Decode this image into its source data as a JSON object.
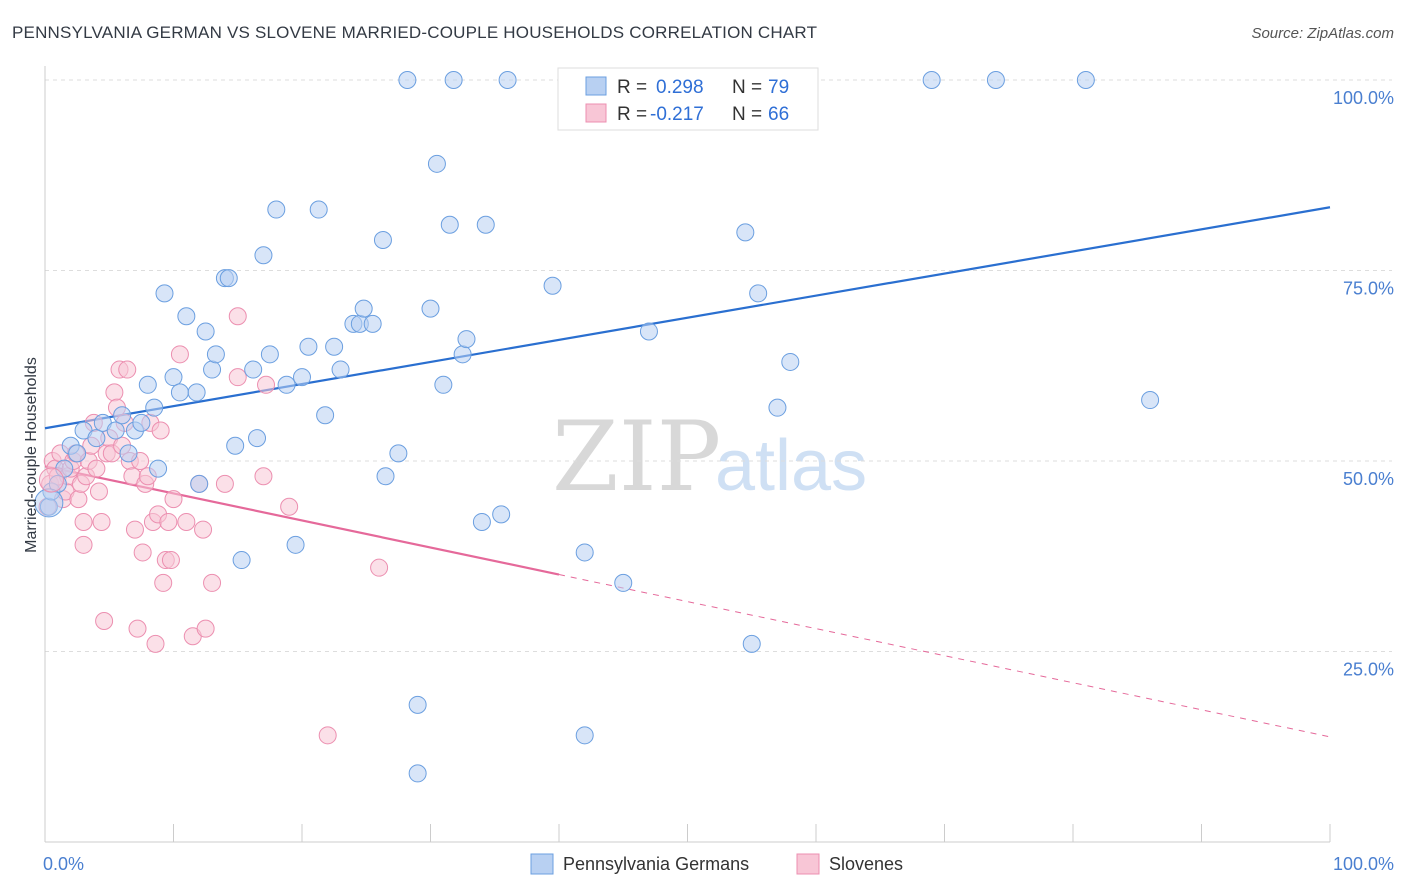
{
  "title": "PENNSYLVANIA GERMAN VS SLOVENE MARRIED-COUPLE HOUSEHOLDS CORRELATION CHART",
  "source": "Source: ZipAtlas.com",
  "watermark": {
    "zip": "ZIP",
    "atlas": "atlas"
  },
  "colors": {
    "blue_fill": "#b8d0f2",
    "blue_stroke": "#6b9fe0",
    "blue_line": "#2a6fd0",
    "pink_fill": "#f8c6d6",
    "pink_stroke": "#ec8fb0",
    "pink_line": "#e5699a",
    "grid": "#dddddd",
    "tick_text": "#4a7fd0"
  },
  "legend": {
    "rows": [
      {
        "r_label": "R =",
        "r_value": "0.298",
        "n_label": "N =",
        "n_value": "79"
      },
      {
        "r_label": "R =",
        "r_value": "-0.217",
        "n_label": "N =",
        "n_value": "66"
      }
    ]
  },
  "chart_data": {
    "type": "scatter",
    "title": "PENNSYLVANIA GERMAN VS SLOVENE MARRIED-COUPLE HOUSEHOLDS CORRELATION CHART",
    "xlabel": "",
    "ylabel": "Married-couple Households",
    "xlim": [
      0,
      100
    ],
    "ylim": [
      0,
      100
    ],
    "x_tick_labels": [
      "0.0%",
      "100.0%"
    ],
    "y_tick_labels": [
      "25.0%",
      "50.0%",
      "75.0%",
      "100.0%"
    ],
    "y_ticks": [
      25,
      50,
      75,
      100
    ],
    "grid": true,
    "legend_position": "top-center",
    "series": [
      {
        "name": "Pennsylvania Germans",
        "color": "#b8d0f2",
        "r": 0.298,
        "n": 79,
        "trend": {
          "x": [
            0,
            100
          ],
          "y": [
            54.3,
            83.3
          ]
        },
        "points": [
          [
            0.3,
            44
          ],
          [
            0.5,
            46
          ],
          [
            1.0,
            47
          ],
          [
            1.5,
            49
          ],
          [
            2,
            52
          ],
          [
            2.5,
            51
          ],
          [
            3,
            54
          ],
          [
            4,
            53
          ],
          [
            4.5,
            55
          ],
          [
            5.5,
            54
          ],
          [
            6,
            56
          ],
          [
            6.5,
            51
          ],
          [
            7,
            54
          ],
          [
            7.5,
            55
          ],
          [
            8,
            60
          ],
          [
            8.5,
            57
          ],
          [
            8.8,
            49
          ],
          [
            9.3,
            72
          ],
          [
            10,
            61
          ],
          [
            10.5,
            59
          ],
          [
            11,
            69
          ],
          [
            11.8,
            59
          ],
          [
            12,
            47
          ],
          [
            12.5,
            67
          ],
          [
            13,
            62
          ],
          [
            13.3,
            64
          ],
          [
            14,
            74
          ],
          [
            14.3,
            74
          ],
          [
            14.8,
            52
          ],
          [
            15.3,
            37
          ],
          [
            16.2,
            62
          ],
          [
            16.5,
            53
          ],
          [
            17,
            77
          ],
          [
            17.5,
            64
          ],
          [
            18,
            83
          ],
          [
            18.8,
            60
          ],
          [
            19.5,
            39
          ],
          [
            20,
            61
          ],
          [
            20.5,
            65
          ],
          [
            21.3,
            83
          ],
          [
            21.8,
            56
          ],
          [
            22.5,
            65
          ],
          [
            23,
            62
          ],
          [
            24,
            68
          ],
          [
            24.5,
            68
          ],
          [
            24.8,
            70
          ],
          [
            25.5,
            68
          ],
          [
            26.3,
            79
          ],
          [
            26.5,
            48
          ],
          [
            27.5,
            51
          ],
          [
            28.2,
            100
          ],
          [
            29,
            18
          ],
          [
            29,
            9
          ],
          [
            30,
            70
          ],
          [
            30.5,
            89
          ],
          [
            31,
            60
          ],
          [
            31.5,
            81
          ],
          [
            31.8,
            100
          ],
          [
            32.5,
            64
          ],
          [
            32.8,
            66
          ],
          [
            34,
            42
          ],
          [
            34.3,
            81
          ],
          [
            35.5,
            43
          ],
          [
            36,
            100
          ],
          [
            39.5,
            73
          ],
          [
            42,
            14
          ],
          [
            42,
            38
          ],
          [
            45,
            34
          ],
          [
            47,
            67
          ],
          [
            54,
            100
          ],
          [
            54.5,
            80
          ],
          [
            55,
            26
          ],
          [
            55.5,
            72
          ],
          [
            57,
            57
          ],
          [
            58,
            63
          ],
          [
            69,
            100
          ],
          [
            74,
            100
          ],
          [
            81,
            100
          ],
          [
            86,
            58
          ]
        ]
      },
      {
        "name": "Slovenes",
        "color": "#f8c6d6",
        "r": -0.217,
        "n": 66,
        "trend": {
          "x": [
            0,
            40
          ],
          "y": [
            49.3,
            35.1
          ]
        },
        "trend_dashed": {
          "x": [
            40,
            100
          ],
          "y": [
            35.1,
            13.8
          ]
        },
        "points": [
          [
            0.2,
            44
          ],
          [
            0.4,
            47
          ],
          [
            0.6,
            50
          ],
          [
            0.8,
            49
          ],
          [
            1,
            48
          ],
          [
            1.2,
            51
          ],
          [
            1.4,
            45
          ],
          [
            1.6,
            46
          ],
          [
            1.8,
            48
          ],
          [
            2,
            49
          ],
          [
            2.2,
            50
          ],
          [
            2.4,
            51
          ],
          [
            2.6,
            45
          ],
          [
            2.8,
            47
          ],
          [
            3,
            42
          ],
          [
            3,
            39
          ],
          [
            3.2,
            48
          ],
          [
            3.4,
            50
          ],
          [
            3.6,
            52
          ],
          [
            3.8,
            55
          ],
          [
            4,
            49
          ],
          [
            4.2,
            46
          ],
          [
            4.4,
            42
          ],
          [
            4.6,
            29
          ],
          [
            4.8,
            51
          ],
          [
            5,
            53
          ],
          [
            5.2,
            51
          ],
          [
            5.4,
            59
          ],
          [
            5.6,
            57
          ],
          [
            5.8,
            62
          ],
          [
            6,
            52
          ],
          [
            6.2,
            55
          ],
          [
            6.4,
            62
          ],
          [
            6.6,
            50
          ],
          [
            6.8,
            48
          ],
          [
            7,
            41
          ],
          [
            7.2,
            28
          ],
          [
            7.4,
            50
          ],
          [
            7.6,
            38
          ],
          [
            7.8,
            47
          ],
          [
            8,
            48
          ],
          [
            8.2,
            55
          ],
          [
            8.4,
            42
          ],
          [
            8.6,
            26
          ],
          [
            8.8,
            43
          ],
          [
            9,
            54
          ],
          [
            9.2,
            34
          ],
          [
            9.4,
            37
          ],
          [
            9.6,
            42
          ],
          [
            9.8,
            37
          ],
          [
            10,
            45
          ],
          [
            10.5,
            64
          ],
          [
            11,
            42
          ],
          [
            11.5,
            27
          ],
          [
            12,
            47
          ],
          [
            12.3,
            41
          ],
          [
            12.5,
            28
          ],
          [
            13,
            34
          ],
          [
            14,
            47
          ],
          [
            15,
            69
          ],
          [
            15,
            61
          ],
          [
            17,
            48
          ],
          [
            17.2,
            60
          ],
          [
            19,
            44
          ],
          [
            22,
            14
          ],
          [
            26,
            36
          ]
        ]
      }
    ]
  },
  "bottom_legend": {
    "items": [
      {
        "label": "Pennsylvania Germans"
      },
      {
        "label": "Slovenes"
      }
    ]
  }
}
